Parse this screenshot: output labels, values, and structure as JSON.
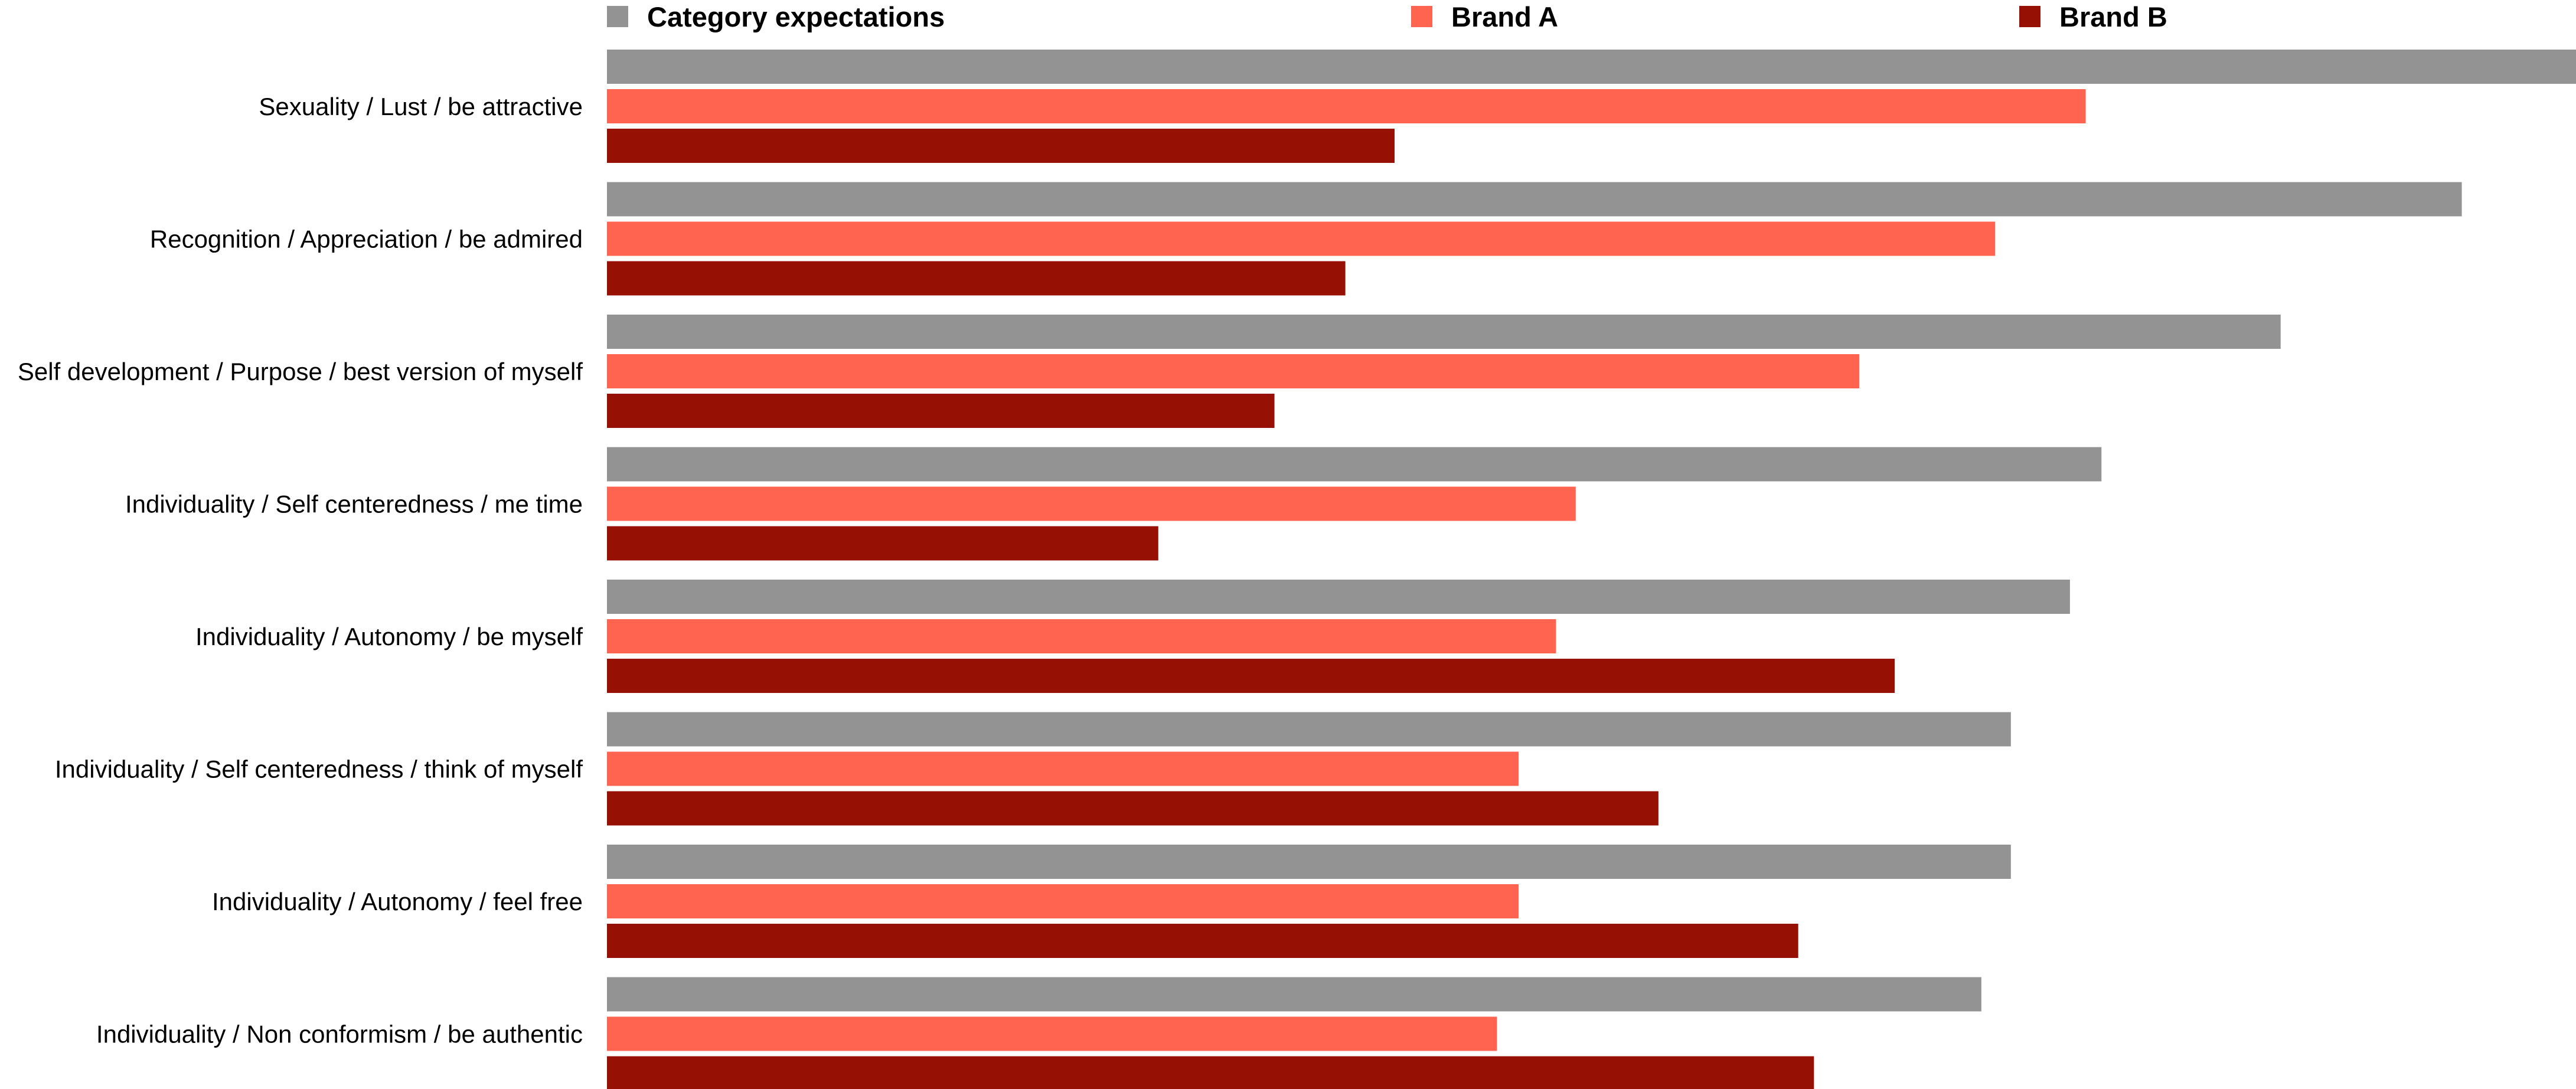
{
  "chart_data": {
    "type": "bar",
    "orientation": "horizontal",
    "categories": [
      "Sexuality / Lust / be attractive",
      "Recognition / Appreciation / be admired",
      "Self development / Purpose / best version of myself",
      "Individuality / Self centeredness / me time",
      "Individuality / Autonomy / be myself",
      "Individuality / Self centeredness / think of myself",
      "Individuality / Autonomy / feel free",
      "Individuality / Non conformism / be authentic"
    ],
    "series": [
      {
        "name": "Category expectations",
        "color": "#939393",
        "values": [
          1.0,
          0.942,
          0.85,
          0.759,
          0.743,
          0.713,
          0.713,
          0.698
        ]
      },
      {
        "name": "Brand A",
        "color": "#ff6450",
        "values": [
          0.751,
          0.705,
          0.636,
          0.492,
          0.482,
          0.463,
          0.463,
          0.452
        ]
      },
      {
        "name": "Brand B",
        "color": "#961104",
        "values": [
          0.4,
          0.375,
          0.339,
          0.28,
          0.654,
          0.534,
          0.605,
          0.613
        ]
      }
    ],
    "xlim": [
      0,
      1
    ],
    "legend_position": "top",
    "grid": false,
    "title": "",
    "xlabel": "",
    "ylabel": ""
  }
}
